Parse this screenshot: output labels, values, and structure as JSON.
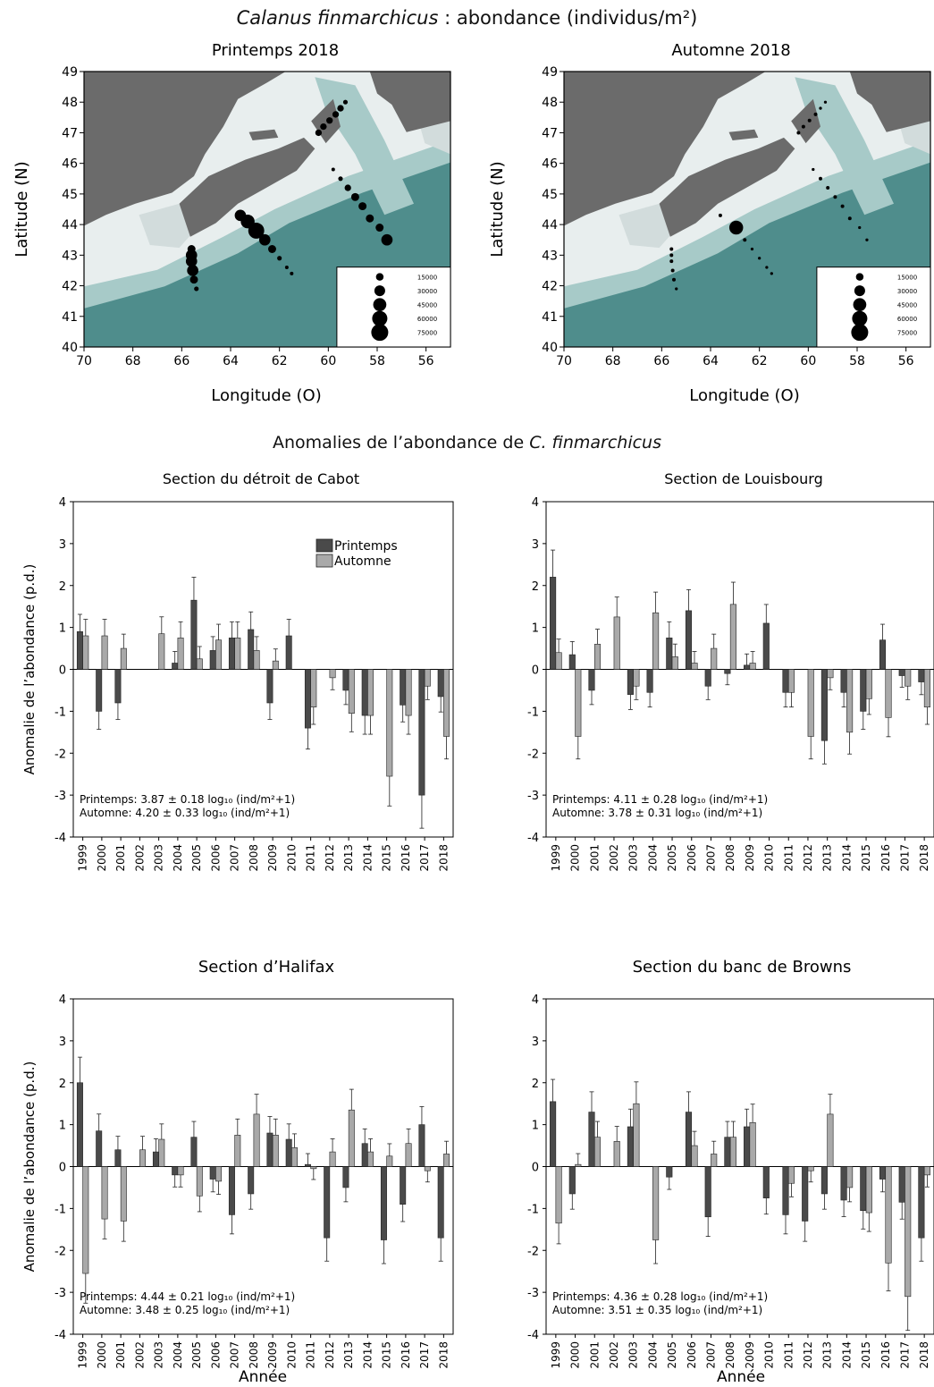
{
  "header": {
    "species_italic": "Calanus finmarchicus",
    "title_rest": " : abondance (individus/m²)"
  },
  "maps": [
    {
      "title": "Printemps 2018",
      "ylabel": "Latitude (N)",
      "xlabel": "Longitude (O)",
      "lon_ticks": [
        "70",
        "68",
        "66",
        "64",
        "62",
        "60",
        "58",
        "56"
      ],
      "lat_ticks": [
        "40",
        "41",
        "42",
        "43",
        "44",
        "45",
        "46",
        "47",
        "48",
        "49"
      ],
      "legend": [
        "15000",
        "30000",
        "45000",
        "60000",
        "75000"
      ],
      "stations": [
        {
          "lon": 65.6,
          "lat": 43.2,
          "v": 15000
        },
        {
          "lon": 65.6,
          "lat": 43.0,
          "v": 30000
        },
        {
          "lon": 65.6,
          "lat": 42.8,
          "v": 30000
        },
        {
          "lon": 65.55,
          "lat": 42.5,
          "v": 30000
        },
        {
          "lon": 65.5,
          "lat": 42.2,
          "v": 15000
        },
        {
          "lon": 65.4,
          "lat": 41.9,
          "v": 5000
        },
        {
          "lon": 63.6,
          "lat": 44.3,
          "v": 30000
        },
        {
          "lon": 63.3,
          "lat": 44.1,
          "v": 45000
        },
        {
          "lon": 62.95,
          "lat": 43.8,
          "v": 60000
        },
        {
          "lon": 62.6,
          "lat": 43.5,
          "v": 30000
        },
        {
          "lon": 62.3,
          "lat": 43.2,
          "v": 15000
        },
        {
          "lon": 62.0,
          "lat": 42.9,
          "v": 5000
        },
        {
          "lon": 61.7,
          "lat": 42.6,
          "v": 3000
        },
        {
          "lon": 61.5,
          "lat": 42.4,
          "v": 3000
        },
        {
          "lon": 59.8,
          "lat": 45.8,
          "v": 3000
        },
        {
          "lon": 59.5,
          "lat": 45.5,
          "v": 5000
        },
        {
          "lon": 59.2,
          "lat": 45.2,
          "v": 10000
        },
        {
          "lon": 58.9,
          "lat": 44.9,
          "v": 15000
        },
        {
          "lon": 58.6,
          "lat": 44.6,
          "v": 15000
        },
        {
          "lon": 58.3,
          "lat": 44.2,
          "v": 15000
        },
        {
          "lon": 57.9,
          "lat": 43.9,
          "v": 15000
        },
        {
          "lon": 57.6,
          "lat": 43.5,
          "v": 30000
        },
        {
          "lon": 60.4,
          "lat": 47.0,
          "v": 10000
        },
        {
          "lon": 60.2,
          "lat": 47.2,
          "v": 10000
        },
        {
          "lon": 59.95,
          "lat": 47.4,
          "v": 10000
        },
        {
          "lon": 59.7,
          "lat": 47.6,
          "v": 10000
        },
        {
          "lon": 59.5,
          "lat": 47.8,
          "v": 10000
        },
        {
          "lon": 59.3,
          "lat": 48.0,
          "v": 5000
        }
      ]
    },
    {
      "title": "Automne 2018",
      "ylabel": "Latitude (N)",
      "xlabel": "Longitude (O)",
      "lon_ticks": [
        "70",
        "68",
        "66",
        "64",
        "62",
        "60",
        "58",
        "56"
      ],
      "lat_ticks": [
        "40",
        "41",
        "42",
        "43",
        "44",
        "45",
        "46",
        "47",
        "48",
        "49"
      ],
      "legend": [
        "15000",
        "30000",
        "45000",
        "60000",
        "75000"
      ],
      "stations": [
        {
          "lon": 65.6,
          "lat": 43.2,
          "v": 3000
        },
        {
          "lon": 65.6,
          "lat": 43.0,
          "v": 3000
        },
        {
          "lon": 65.6,
          "lat": 42.8,
          "v": 3000
        },
        {
          "lon": 65.55,
          "lat": 42.5,
          "v": 3000
        },
        {
          "lon": 65.5,
          "lat": 42.2,
          "v": 3000
        },
        {
          "lon": 65.4,
          "lat": 41.9,
          "v": 2000
        },
        {
          "lon": 63.6,
          "lat": 44.3,
          "v": 3000
        },
        {
          "lon": 62.95,
          "lat": 43.9,
          "v": 45000
        },
        {
          "lon": 62.6,
          "lat": 43.5,
          "v": 3000
        },
        {
          "lon": 62.3,
          "lat": 43.2,
          "v": 2000
        },
        {
          "lon": 62.0,
          "lat": 42.9,
          "v": 2000
        },
        {
          "lon": 61.7,
          "lat": 42.6,
          "v": 2000
        },
        {
          "lon": 61.5,
          "lat": 42.4,
          "v": 2000
        },
        {
          "lon": 59.8,
          "lat": 45.8,
          "v": 2000
        },
        {
          "lon": 59.5,
          "lat": 45.5,
          "v": 3000
        },
        {
          "lon": 59.2,
          "lat": 45.2,
          "v": 3000
        },
        {
          "lon": 58.9,
          "lat": 44.9,
          "v": 3000
        },
        {
          "lon": 58.6,
          "lat": 44.6,
          "v": 3000
        },
        {
          "lon": 58.3,
          "lat": 44.2,
          "v": 3000
        },
        {
          "lon": 57.9,
          "lat": 43.9,
          "v": 2000
        },
        {
          "lon": 57.6,
          "lat": 43.5,
          "v": 2000
        },
        {
          "lon": 60.4,
          "lat": 47.0,
          "v": 3000
        },
        {
          "lon": 60.2,
          "lat": 47.2,
          "v": 3000
        },
        {
          "lon": 59.95,
          "lat": 47.4,
          "v": 3000
        },
        {
          "lon": 59.7,
          "lat": 47.6,
          "v": 3000
        },
        {
          "lon": 59.5,
          "lat": 47.8,
          "v": 2000
        },
        {
          "lon": 59.3,
          "lat": 48.0,
          "v": 2000
        }
      ]
    }
  ],
  "anomalies_heading": {
    "prefix": "Anomalies de l’abondance de ",
    "species_italic": "C. finmarchicus"
  },
  "chart_data": [
    {
      "type": "bar",
      "title": "Section du détroit de Cabot",
      "xlabel": "",
      "ylabel": "Anomalie de l’abondance (p.d.)",
      "ylim": [
        -4,
        4
      ],
      "categories": [
        "1999",
        "2000",
        "2001",
        "2002",
        "2003",
        "2004",
        "2005",
        "2006",
        "2007",
        "2008",
        "2009",
        "2010",
        "2011",
        "2012",
        "2013",
        "2014",
        "2015",
        "2016",
        "2017",
        "2018"
      ],
      "legend": [
        "Printemps",
        "Automne"
      ],
      "series": [
        {
          "name": "Printemps",
          "values": [
            0.9,
            -1.0,
            -0.8,
            null,
            null,
            0.15,
            1.65,
            0.45,
            0.75,
            0.95,
            -0.8,
            0.8,
            -1.4,
            null,
            -0.5,
            -1.1,
            null,
            -0.85,
            -3.0,
            -0.65
          ]
        },
        {
          "name": "Automne",
          "values": [
            0.8,
            0.8,
            0.5,
            null,
            0.85,
            0.75,
            0.25,
            0.7,
            0.75,
            0.45,
            0.2,
            null,
            -0.9,
            -0.2,
            -1.05,
            -1.1,
            -2.55,
            -1.1,
            -0.4,
            -1.6
          ]
        }
      ],
      "annotations": [
        "Printemps: 3.87 ± 0.18 log₁₀ (ind/m²+1)",
        "Automne: 4.20 ± 0.33 log₁₀ (ind/m²+1)"
      ]
    },
    {
      "type": "bar",
      "title": "Section de Louisbourg",
      "xlabel": "",
      "ylabel": "",
      "ylim": [
        -4,
        4
      ],
      "categories": [
        "1999",
        "2000",
        "2001",
        "2002",
        "2003",
        "2004",
        "2005",
        "2006",
        "2007",
        "2008",
        "2009",
        "2010",
        "2011",
        "2012",
        "2013",
        "2014",
        "2015",
        "2016",
        "2017",
        "2018"
      ],
      "series": [
        {
          "name": "Printemps",
          "values": [
            2.2,
            0.35,
            -0.5,
            null,
            -0.6,
            -0.55,
            0.75,
            1.4,
            -0.4,
            -0.1,
            0.1,
            1.1,
            -0.55,
            null,
            -1.7,
            -0.55,
            -1.0,
            0.7,
            -0.15,
            -0.3
          ]
        },
        {
          "name": "Automne",
          "values": [
            0.4,
            -1.6,
            0.6,
            1.25,
            -0.4,
            1.35,
            0.3,
            0.15,
            0.5,
            1.55,
            0.15,
            null,
            -0.55,
            -1.6,
            -0.2,
            -1.5,
            -0.7,
            -1.15,
            -0.4,
            -0.9
          ]
        }
      ],
      "annotations": [
        "Printemps: 4.11 ± 0.28 log₁₀ (ind/m²+1)",
        "Automne: 3.78 ± 0.31 log₁₀ (ind/m²+1)"
      ]
    },
    {
      "type": "bar",
      "title": "Section d’Halifax",
      "xlabel": "Année",
      "ylabel": "Anomalie de l’abondance (p.d.)",
      "ylim": [
        -4,
        4
      ],
      "categories": [
        "1999",
        "2000",
        "2001",
        "2002",
        "2003",
        "2004",
        "2005",
        "2006",
        "2007",
        "2008",
        "2009",
        "2010",
        "2011",
        "2012",
        "2013",
        "2014",
        "2015",
        "2016",
        "2017",
        "2018"
      ],
      "series": [
        {
          "name": "Printemps",
          "values": [
            2.0,
            0.85,
            0.4,
            null,
            0.35,
            -0.2,
            0.7,
            -0.3,
            -1.15,
            -0.65,
            0.8,
            0.65,
            0.05,
            -1.7,
            -0.5,
            0.55,
            -1.75,
            -0.9,
            1.0,
            -1.7
          ]
        },
        {
          "name": "Automne",
          "values": [
            -2.55,
            -1.25,
            -1.3,
            0.4,
            0.65,
            -0.2,
            -0.7,
            -0.35,
            0.75,
            1.25,
            0.75,
            0.45,
            -0.05,
            0.35,
            1.35,
            0.35,
            0.25,
            0.55,
            -0.1,
            0.3
          ]
        }
      ],
      "annotations": [
        "Printemps: 4.44 ± 0.21 log₁₀ (ind/m²+1)",
        "Automne: 3.48 ± 0.25 log₁₀ (ind/m²+1)"
      ]
    },
    {
      "type": "bar",
      "title": "Section du banc de Browns",
      "xlabel": "Année",
      "ylabel": "",
      "ylim": [
        -4,
        4
      ],
      "categories": [
        "1999",
        "2000",
        "2001",
        "2002",
        "2003",
        "2004",
        "2005",
        "2006",
        "2007",
        "2008",
        "2009",
        "2010",
        "2011",
        "2012",
        "2013",
        "2014",
        "2015",
        "2016",
        "2017",
        "2018"
      ],
      "series": [
        {
          "name": "Printemps",
          "values": [
            1.55,
            -0.65,
            1.3,
            null,
            0.95,
            null,
            -0.25,
            1.3,
            -1.2,
            0.7,
            0.95,
            -0.75,
            -1.15,
            -1.3,
            -0.65,
            -0.8,
            -1.05,
            -0.3,
            -0.85,
            -1.7
          ]
        },
        {
          "name": "Automne",
          "values": [
            -1.35,
            0.05,
            0.7,
            0.6,
            1.5,
            -1.75,
            null,
            0.5,
            0.3,
            0.7,
            1.05,
            null,
            -0.4,
            -0.1,
            1.25,
            -0.5,
            -1.1,
            -2.3,
            -3.1,
            -0.2
          ]
        }
      ],
      "annotations": [
        "Printemps: 4.36 ± 0.28 log₁₀ (ind/m²+1)",
        "Automne: 3.51 ± 0.35 log₁₀ (ind/m²+1)"
      ]
    }
  ],
  "colors": {
    "printemps": "#4a4a4a",
    "automne": "#a9a9a9",
    "land": "#6b6b6b",
    "shelf": "#e8eeee",
    "ocean_deep": "#4f8d8c",
    "ocean_mid": "#a7cac8"
  }
}
